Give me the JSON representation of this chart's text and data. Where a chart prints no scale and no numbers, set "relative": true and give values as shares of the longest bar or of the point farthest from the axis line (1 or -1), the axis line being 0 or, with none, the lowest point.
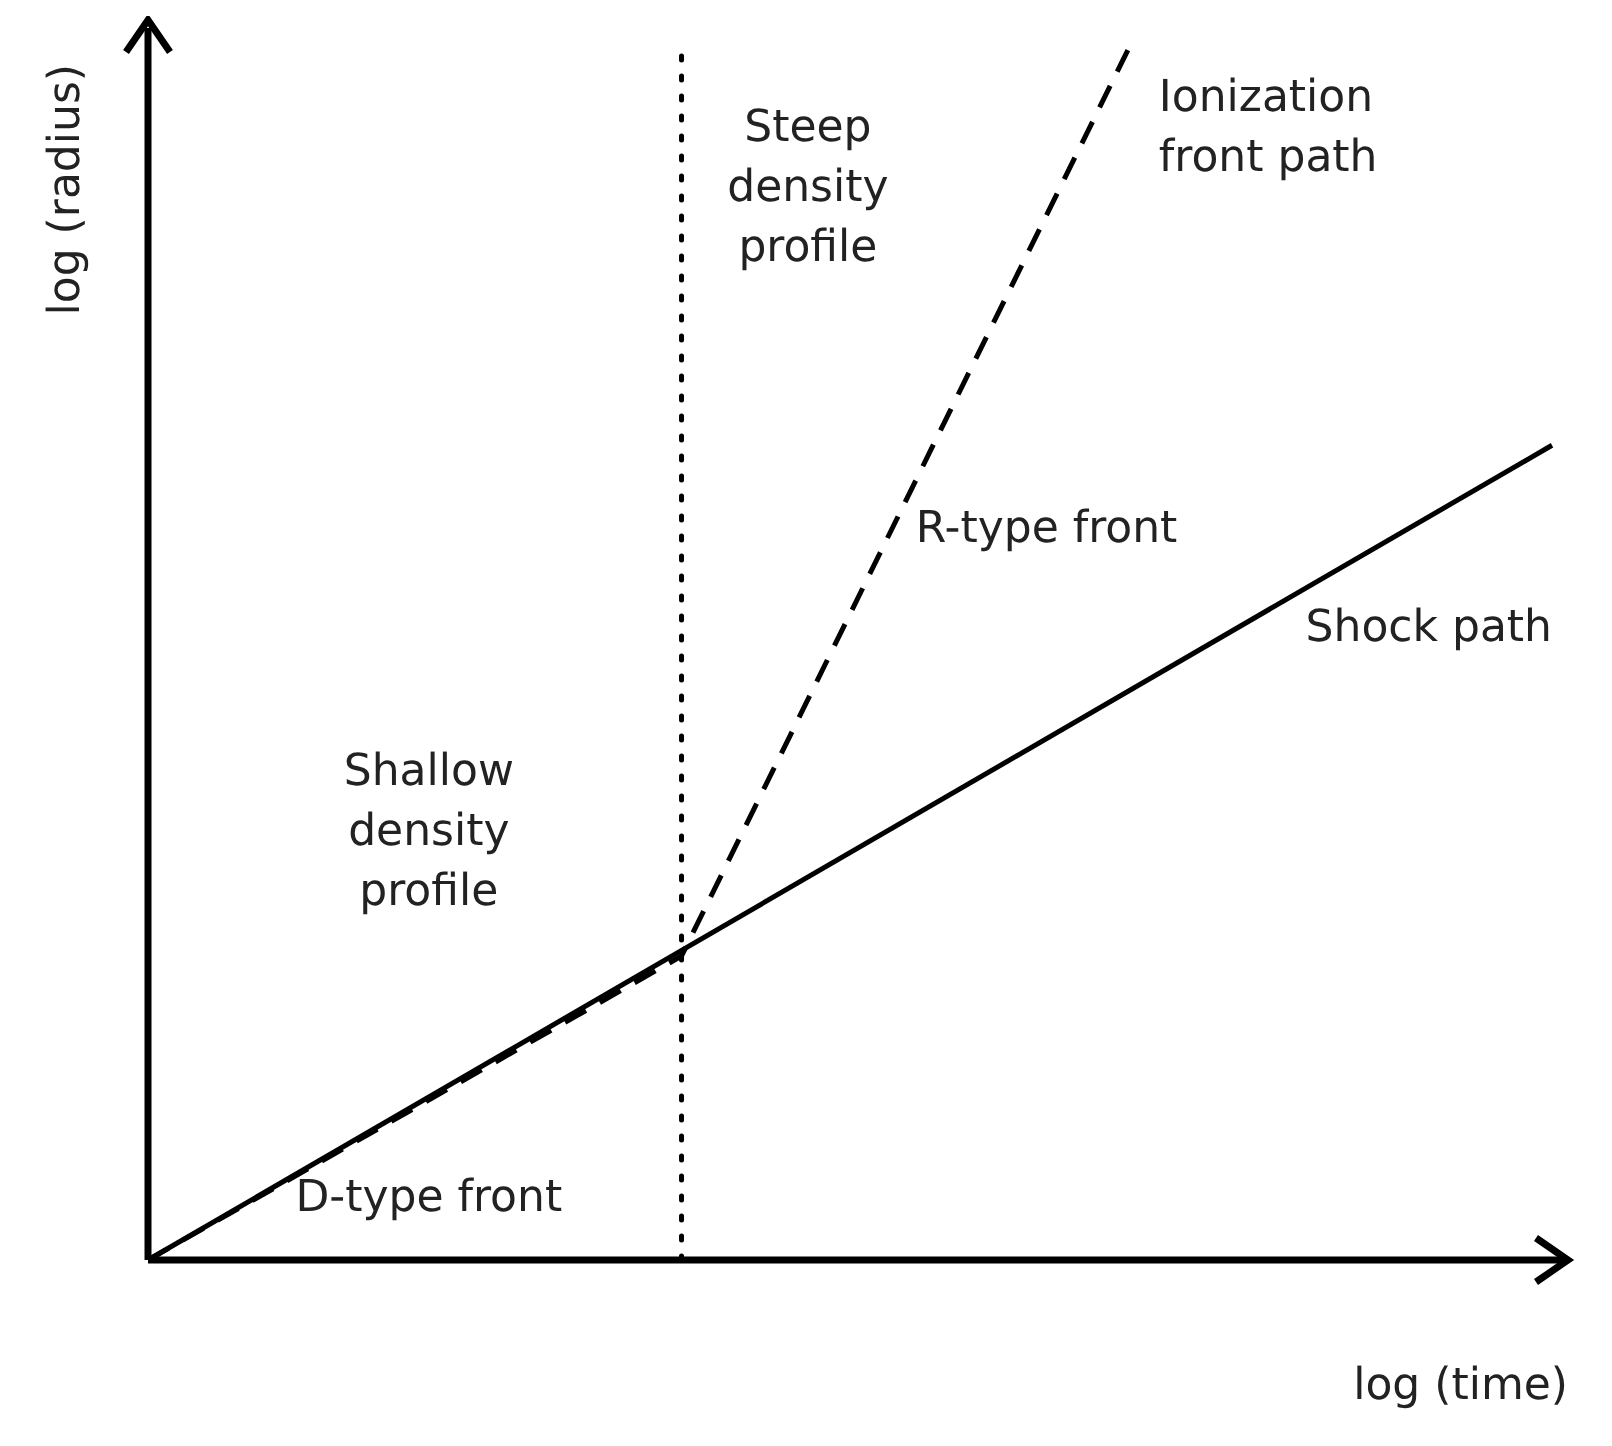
{
  "chart_data": {
    "type": "line",
    "relative": true,
    "xlabel": "log (time)",
    "ylabel": "log (radius)",
    "legend": false,
    "marker": "none",
    "categories": [
      null,
      null,
      null,
      null,
      null,
      null,
      null,
      null,
      null,
      null,
      null,
      null,
      null,
      null,
      null,
      null,
      null,
      null,
      null,
      null,
      null,
      null,
      null,
      null,
      null,
      null,
      null,
      null,
      null,
      null,
      null,
      null,
      null,
      null,
      null,
      null,
      null,
      null,
      null,
      null,
      null,
      null,
      null,
      null,
      null,
      null,
      null,
      null,
      null,
      null,
      null
    ],
    "series": [
      {
        "name": "Shock path",
        "color": "#000000",
        "line_style": "solid",
        "values": [
          0,
          null,
          null,
          null,
          null,
          null,
          null,
          null,
          null,
          null,
          null,
          null,
          null,
          null,
          null,
          null,
          null,
          null,
          null,
          null,
          null,
          null,
          null,
          null,
          null,
          null,
          null,
          null,
          null,
          null,
          null,
          null,
          null,
          null,
          null,
          null,
          null,
          null,
          null,
          null,
          null,
          null,
          null,
          null,
          null,
          null,
          null,
          null,
          null,
          null,
          0.67
        ]
      },
      {
        "name": "Ionization front path",
        "color": "#000000",
        "line_style": "dashed",
        "values": [
          0,
          null,
          null,
          null,
          null,
          null,
          null,
          null,
          null,
          null,
          null,
          null,
          null,
          null,
          null,
          null,
          null,
          null,
          null,
          0.25,
          null,
          null,
          null,
          null,
          null,
          null,
          null,
          null,
          null,
          null,
          null,
          null,
          null,
          null,
          null,
          1,
          null,
          null,
          null,
          null,
          null,
          null,
          null,
          null,
          null,
          null,
          null,
          null,
          null,
          null,
          null
        ]
      }
    ],
    "annotations": [
      "Steep density profile",
      "Shallow density profile",
      "R-type front",
      "D-type front"
    ]
  }
}
